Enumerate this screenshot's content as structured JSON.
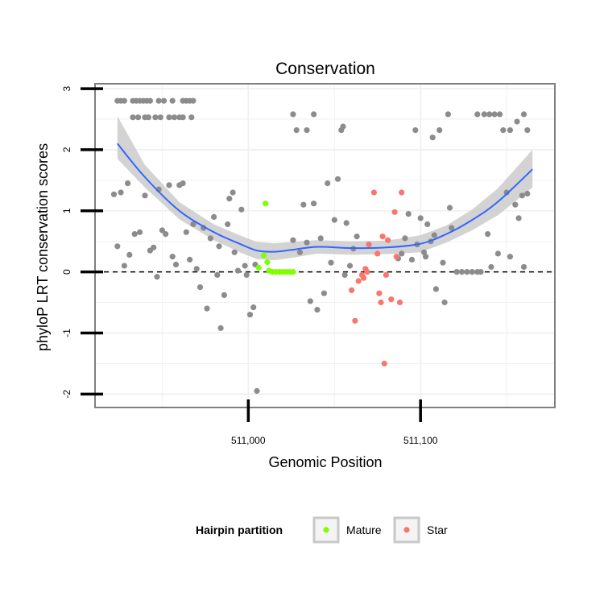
{
  "chart_data": {
    "type": "scatter",
    "title": "Conservation",
    "xlabel": "Genomic Position",
    "ylabel": "phyloP LRT conservation scores",
    "xlim": [
      510911,
      511178
    ],
    "ylim": [
      -2.22,
      3.08
    ],
    "x_ticks": [
      {
        "value": 511000,
        "label": "511,000"
      },
      {
        "value": 511100,
        "label": "511,100"
      }
    ],
    "y_ticks": [
      {
        "value": -2,
        "label": "-2"
      },
      {
        "value": -1,
        "label": "-1"
      },
      {
        "value": 0,
        "label": "0"
      },
      {
        "value": 1,
        "label": "1"
      },
      {
        "value": 2,
        "label": "2"
      },
      {
        "value": 3,
        "label": "3"
      }
    ],
    "grid": true,
    "reference_line": {
      "y": 0,
      "style": "dashed"
    },
    "colors": {
      "other": "#8c8c8c",
      "mature": "#7fff00",
      "star": "#f8766d",
      "smooth": "#3366ff",
      "ribbon": "#c8c8c8",
      "grid": "#f0f0f0",
      "border": "#7f7f7f"
    },
    "legend": {
      "title": "Hairpin partition",
      "placement": "bottom",
      "entries": [
        {
          "label": "Mature",
          "color": "#7fff00"
        },
        {
          "label": "Star",
          "color": "#f8766d"
        }
      ]
    },
    "smooth": {
      "x": [
        510924,
        510940,
        510960,
        510980,
        510995,
        511005,
        511015,
        511025,
        511040,
        511060,
        511080,
        511100,
        511115,
        511130,
        511145,
        511165
      ],
      "y": [
        2.1,
        1.55,
        1.0,
        0.65,
        0.46,
        0.35,
        0.33,
        0.36,
        0.41,
        0.39,
        0.4,
        0.46,
        0.62,
        0.85,
        1.15,
        1.68
      ],
      "lower": [
        1.85,
        1.38,
        0.86,
        0.52,
        0.32,
        0.21,
        0.19,
        0.23,
        0.3,
        0.28,
        0.29,
        0.32,
        0.48,
        0.68,
        0.93,
        1.38
      ],
      "upper": [
        2.55,
        1.75,
        1.14,
        0.78,
        0.6,
        0.49,
        0.47,
        0.49,
        0.52,
        0.5,
        0.51,
        0.6,
        0.76,
        1.02,
        1.37,
        2.0
      ]
    },
    "series": [
      {
        "name": "Mature",
        "points": [
          [
            511006,
            0.07
          ],
          [
            511009,
            0.27
          ],
          [
            511010,
            1.12
          ],
          [
            511011,
            0.16
          ],
          [
            511012,
            0.02
          ],
          [
            511014,
            0.0
          ],
          [
            511016,
            0.0
          ],
          [
            511018,
            0.0
          ],
          [
            511020,
            0.0
          ],
          [
            511022,
            0.0
          ],
          [
            511024,
            0.0
          ],
          [
            511026,
            0.0
          ]
        ]
      },
      {
        "name": "Star",
        "points": [
          [
            511060,
            -0.3
          ],
          [
            511062,
            -0.8
          ],
          [
            511064,
            -0.15
          ],
          [
            511066,
            -0.05
          ],
          [
            511068,
            0.05
          ],
          [
            511070,
            0.45
          ],
          [
            511073,
            1.3
          ],
          [
            511075,
            0.3
          ],
          [
            511076,
            -0.35
          ],
          [
            511077,
            -0.5
          ],
          [
            511078,
            0.58
          ],
          [
            511079,
            -1.5
          ],
          [
            511080,
            -0.05
          ],
          [
            511081,
            0.52
          ],
          [
            511083,
            -0.45
          ],
          [
            511085,
            0.98
          ],
          [
            511086,
            0.25
          ],
          [
            511088,
            -0.5
          ],
          [
            511089,
            1.3
          ],
          [
            511069,
            0.0
          ],
          [
            511067,
            -0.1
          ]
        ]
      },
      {
        "name": "",
        "points": [
          [
            510924,
            2.8
          ],
          [
            510926,
            2.8
          ],
          [
            510928,
            2.8
          ],
          [
            510933,
            2.8
          ],
          [
            510935,
            2.8
          ],
          [
            510937,
            2.8
          ],
          [
            510939,
            2.8
          ],
          [
            510941,
            2.8
          ],
          [
            510943,
            2.8
          ],
          [
            510948,
            2.8
          ],
          [
            510951,
            2.8
          ],
          [
            510956,
            2.8
          ],
          [
            510962,
            2.8
          ],
          [
            510964,
            2.8
          ],
          [
            510966,
            2.8
          ],
          [
            510968,
            2.8
          ],
          [
            510933,
            2.53
          ],
          [
            510936,
            2.53
          ],
          [
            510940,
            2.53
          ],
          [
            510942,
            2.53
          ],
          [
            510946,
            2.53
          ],
          [
            510949,
            2.53
          ],
          [
            510954,
            2.53
          ],
          [
            510957,
            2.53
          ],
          [
            510960,
            2.53
          ],
          [
            510962,
            2.53
          ],
          [
            510967,
            2.53
          ],
          [
            510922,
            1.27
          ],
          [
            510924,
            0.42
          ],
          [
            510926,
            1.3
          ],
          [
            510928,
            0.1
          ],
          [
            510930,
            1.45
          ],
          [
            510931,
            0.28
          ],
          [
            510934,
            0.62
          ],
          [
            510937,
            0.65
          ],
          [
            510940,
            1.25
          ],
          [
            510943,
            0.35
          ],
          [
            510945,
            0.4
          ],
          [
            510947,
            -0.08
          ],
          [
            510948,
            1.35
          ],
          [
            510950,
            0.68
          ],
          [
            510952,
            0.62
          ],
          [
            510954,
            1.42
          ],
          [
            510956,
            0.25
          ],
          [
            510958,
            0.12
          ],
          [
            510960,
            1.42
          ],
          [
            510962,
            1.45
          ],
          [
            510964,
            0.65
          ],
          [
            510966,
            0.2
          ],
          [
            510968,
            0.78
          ],
          [
            510970,
            0.05
          ],
          [
            510972,
            -0.25
          ],
          [
            510974,
            0.72
          ],
          [
            510976,
            -0.6
          ],
          [
            510978,
            0.55
          ],
          [
            510980,
            0.9
          ],
          [
            510982,
            -0.05
          ],
          [
            510983,
            0.42
          ],
          [
            510984,
            -0.92
          ],
          [
            510986,
            -0.38
          ],
          [
            510988,
            0.78
          ],
          [
            510989,
            1.2
          ],
          [
            510991,
            1.3
          ],
          [
            510992,
            0.32
          ],
          [
            510994,
            0.02
          ],
          [
            510996,
            1.02
          ],
          [
            510998,
            0.1
          ],
          [
            510999,
            -0.05
          ],
          [
            511001,
            -0.7
          ],
          [
            511003,
            -0.58
          ],
          [
            511004,
            0.12
          ],
          [
            511005,
            -1.95
          ],
          [
            511026,
            2.58
          ],
          [
            511028,
            2.32
          ],
          [
            511034,
            2.32
          ],
          [
            511038,
            2.58
          ],
          [
            511026,
            0.52
          ],
          [
            511030,
            0.32
          ],
          [
            511032,
            1.1
          ],
          [
            511034,
            0.48
          ],
          [
            511036,
            -0.48
          ],
          [
            511038,
            1.12
          ],
          [
            511040,
            -0.62
          ],
          [
            511042,
            0.55
          ],
          [
            511044,
            -0.35
          ],
          [
            511046,
            1.45
          ],
          [
            511048,
            0.15
          ],
          [
            511050,
            0.85
          ],
          [
            511052,
            1.52
          ],
          [
            511054,
            2.32
          ],
          [
            511055,
            2.38
          ],
          [
            511056,
            -0.05
          ],
          [
            511057,
            0.8
          ],
          [
            511059,
            0.1
          ],
          [
            511061,
            0.38
          ],
          [
            511063,
            0.58
          ],
          [
            511087,
            0.22
          ],
          [
            511089,
            0.3
          ],
          [
            511091,
            0.55
          ],
          [
            511093,
            0.95
          ],
          [
            511095,
            0.2
          ],
          [
            511097,
            2.32
          ],
          [
            511098,
            0.45
          ],
          [
            511100,
            0.88
          ],
          [
            511102,
            0.32
          ],
          [
            511103,
            0.25
          ],
          [
            511104,
            0.78
          ],
          [
            511106,
            0.5
          ],
          [
            511107,
            2.2
          ],
          [
            511108,
            0.6
          ],
          [
            511109,
            -0.28
          ],
          [
            511111,
            2.32
          ],
          [
            511113,
            0.15
          ],
          [
            511114,
            -0.5
          ],
          [
            511116,
            2.58
          ],
          [
            511117,
            1.05
          ],
          [
            511118,
            0.72
          ],
          [
            511121,
            0.0
          ],
          [
            511124,
            0.0
          ],
          [
            511127,
            0.0
          ],
          [
            511130,
            0.0
          ],
          [
            511133,
            0.0
          ],
          [
            511135,
            0.0
          ],
          [
            511133,
            2.58
          ],
          [
            511137,
            2.58
          ],
          [
            511140,
            2.58
          ],
          [
            511143,
            2.58
          ],
          [
            511146,
            2.58
          ],
          [
            511148,
            2.32
          ],
          [
            511152,
            2.32
          ],
          [
            511156,
            2.46
          ],
          [
            511160,
            2.58
          ],
          [
            511162,
            2.32
          ],
          [
            511139,
            0.62
          ],
          [
            511141,
            0.08
          ],
          [
            511145,
            0.3
          ],
          [
            511150,
            1.3
          ],
          [
            511152,
            0.25
          ],
          [
            511155,
            1.1
          ],
          [
            511157,
            0.88
          ],
          [
            511159,
            1.25
          ],
          [
            511162,
            1.28
          ],
          [
            511160,
            0.08
          ]
        ]
      }
    ]
  }
}
